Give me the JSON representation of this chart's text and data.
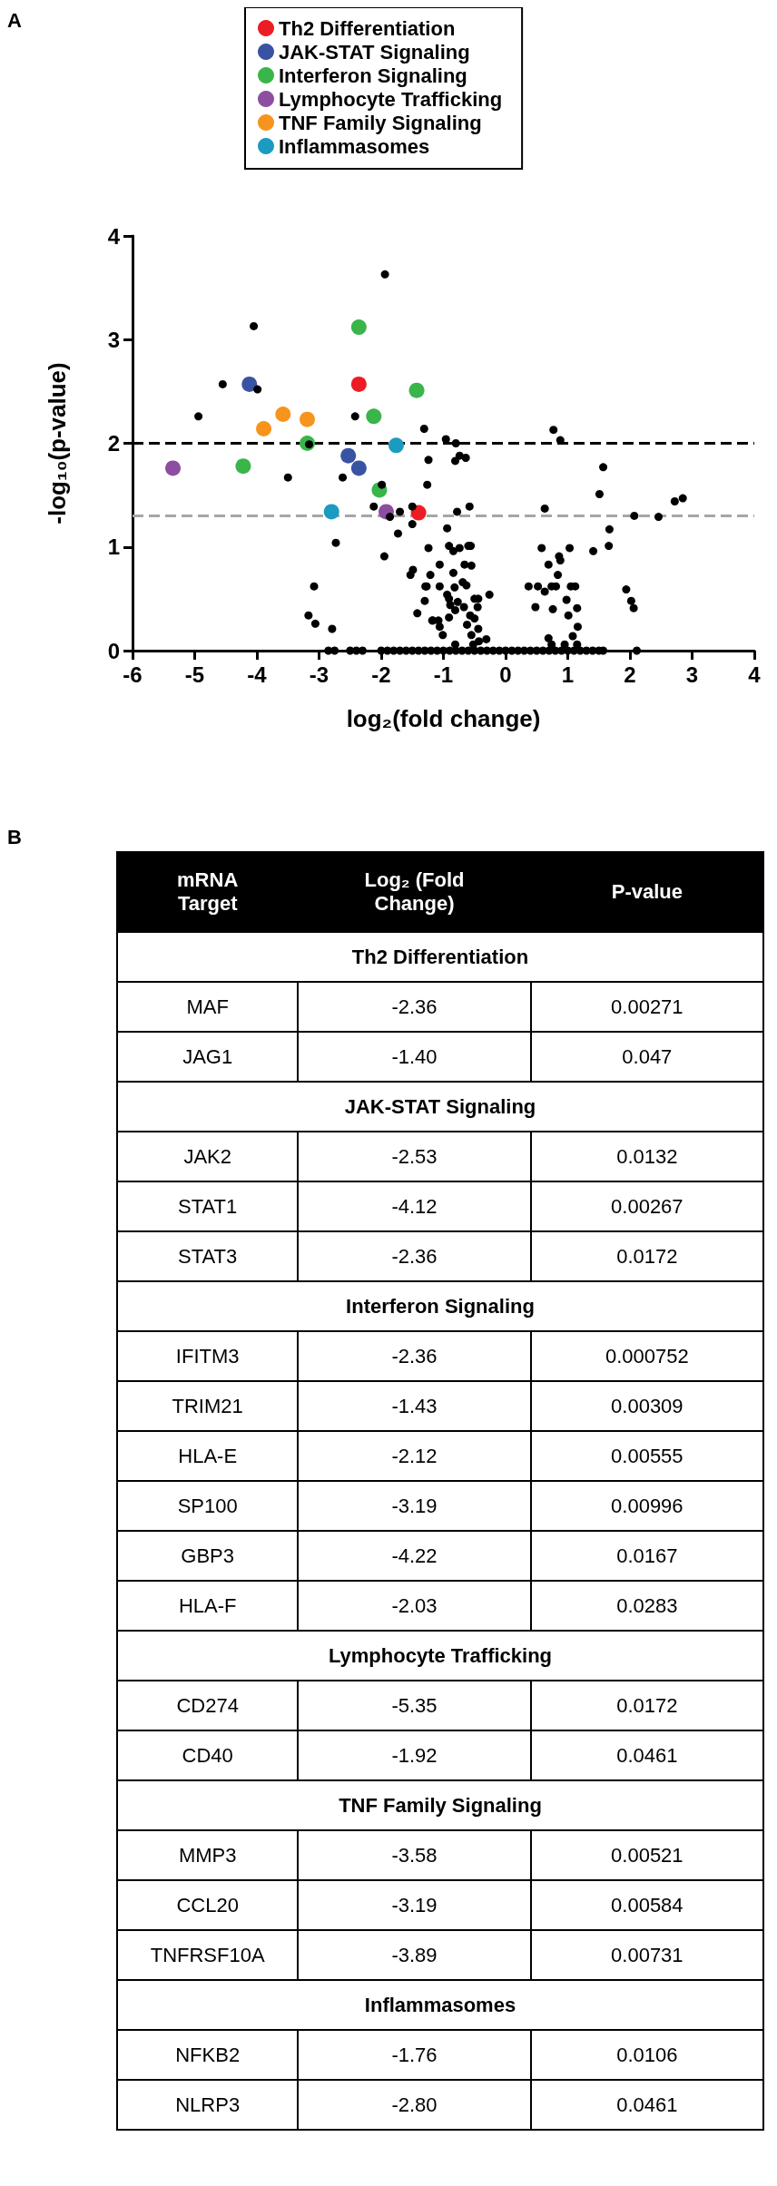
{
  "chart_data": [
    {
      "type": "scatter",
      "annotations": [
        "A"
      ],
      "xlabel": "log₂(fold change)",
      "ylabel": "-log₁₀(p-value)",
      "xlim": [
        -6,
        4
      ],
      "xticks": [
        -6,
        -5,
        -4,
        -3,
        -2,
        -1,
        0,
        1,
        2,
        3,
        4
      ],
      "ylim": [
        0,
        4
      ],
      "yticks": [
        0,
        1,
        2,
        3,
        4
      ],
      "grid": false,
      "legend": "top",
      "marker": "circle",
      "ref_lines": [
        {
          "axis": "y",
          "value": 2,
          "color": "#000000",
          "line_style": "dashed"
        },
        {
          "axis": "y",
          "value": 1.3,
          "color": "#a6a6a6",
          "line_style": "dashed"
        }
      ],
      "series": [
        {
          "name": "Th2 Differentiation",
          "color": "#ed1c24",
          "x": [
            -2.36,
            -1.4
          ],
          "values": [
            2.57,
            1.33
          ]
        },
        {
          "name": "JAK-STAT Signaling",
          "color": "#3953a4",
          "x": [
            -2.53,
            -4.12,
            -2.36
          ],
          "values": [
            1.88,
            2.57,
            1.76
          ]
        },
        {
          "name": "Interferon Signaling",
          "color": "#39b54a",
          "x": [
            -2.36,
            -1.43,
            -2.12,
            -3.19,
            -4.22,
            -2.03
          ],
          "values": [
            3.12,
            2.51,
            2.26,
            2.0,
            1.78,
            1.55
          ]
        },
        {
          "name": "Lymphocyte Trafficking",
          "color": "#8e4ea0",
          "x": [
            -5.35,
            -1.92
          ],
          "values": [
            1.76,
            1.34
          ]
        },
        {
          "name": "TNF Family Signaling",
          "color": "#f7941d",
          "x": [
            -3.58,
            -3.19,
            -3.89
          ],
          "values": [
            2.28,
            2.23,
            2.14
          ]
        },
        {
          "name": "Inflammasomes",
          "color": "#1b9bbf",
          "x": [
            -1.76,
            -2.8
          ],
          "values": [
            1.98,
            1.34
          ]
        },
        {
          "color": "#000000",
          "x": [
            -1.94,
            -4.05,
            -4.55,
            -3.99,
            -4.94,
            -2.42,
            -1.31,
            -3.16,
            -1.24,
            -3.5,
            -2.62,
            -1.99,
            -2.12,
            -1.86,
            -1.7,
            -1.5,
            -1.5,
            -1.73,
            -1.26,
            -2.73,
            -1.95,
            -1.24,
            -3.08,
            -3.17,
            -3.06,
            -2.79,
            -1.49,
            -1.53,
            -1.21,
            -1.29,
            -1.3,
            -1.42,
            -1.17,
            0.77,
            0.88,
            -0.96,
            -0.8,
            -0.74,
            -0.64,
            -0.81,
            1.57,
            1.51,
            2.72,
            2.85,
            -0.58,
            -0.78,
            0.63,
            2.07,
            2.46,
            -0.94,
            1.67,
            1.66,
            1.41,
            -0.91,
            -0.84,
            -0.74,
            -0.6,
            -0.56,
            0.58,
            1.03,
            0.86,
            0.88,
            0.69,
            -1.06,
            -0.66,
            -0.55,
            -0.84,
            0.84,
            -0.69,
            -0.63,
            -1.27,
            -1.06,
            -0.82,
            0.37,
            0.52,
            0.63,
            0.74,
            0.81,
            1.05,
            1.12,
            1.94,
            -0.26,
            -0.94,
            -0.91,
            -0.5,
            -0.44,
            0.98,
            2.02,
            2.06,
            -0.77,
            -0.89,
            -0.67,
            -0.45,
            0.48,
            0.76,
            1.15,
            -0.81,
            -0.91,
            -0.57,
            -0.5,
            1.01,
            -1.18,
            -1.08,
            -1.06,
            -0.62,
            -0.44,
            1.16,
            -1.01,
            -0.55,
            1.08,
            0.69,
            -0.31,
            -0.43,
            -0.81,
            -0.52,
            0.74,
            0.95,
            1.15,
            -2.85,
            -2.75,
            -2.5,
            -2.4,
            -2.3,
            -2.0,
            -1.9,
            -1.8,
            -1.7,
            -1.6,
            -1.5,
            -1.4,
            -1.3,
            -1.2,
            -1.1,
            -1.0,
            -0.9,
            -0.8,
            -0.7,
            -0.6,
            -0.5,
            -0.4,
            -0.3,
            -0.2,
            -0.1,
            0,
            0.1,
            0.2,
            0.3,
            0.4,
            0.5,
            0.6,
            0.7,
            0.8,
            0.9,
            1.0,
            1.1,
            1.2,
            1.3,
            1.4,
            1.5,
            1.57,
            2.11
          ],
          "values": [
            3.63,
            3.13,
            2.57,
            2.52,
            2.26,
            2.26,
            2.14,
            1.99,
            1.84,
            1.67,
            1.67,
            1.6,
            1.39,
            1.29,
            1.34,
            1.39,
            1.22,
            1.13,
            1.6,
            1.04,
            0.91,
            0.99,
            0.62,
            0.34,
            0.26,
            0.21,
            0.78,
            0.73,
            0.73,
            0.62,
            0.48,
            0.36,
            0.29,
            2.13,
            2.03,
            2.04,
            2.0,
            1.88,
            1.86,
            1.83,
            1.77,
            1.51,
            1.44,
            1.47,
            1.39,
            1.34,
            1.37,
            1.3,
            1.29,
            1.18,
            1.17,
            1.01,
            0.96,
            1.01,
            0.96,
            0.99,
            1.01,
            1.01,
            0.99,
            0.99,
            0.91,
            0.87,
            0.83,
            0.83,
            0.83,
            0.82,
            0.75,
            0.73,
            0.66,
            0.63,
            0.62,
            0.62,
            0.61,
            0.62,
            0.62,
            0.57,
            0.62,
            0.62,
            0.62,
            0.62,
            0.59,
            0.54,
            0.54,
            0.5,
            0.5,
            0.5,
            0.49,
            0.48,
            0.41,
            0.47,
            0.44,
            0.42,
            0.42,
            0.42,
            0.4,
            0.41,
            0.39,
            0.32,
            0.34,
            0.31,
            0.34,
            0.29,
            0.29,
            0.23,
            0.25,
            0.21,
            0.23,
            0.15,
            0.15,
            0.14,
            0.12,
            0.11,
            0.09,
            0.06,
            0.06,
            0.06,
            0.06,
            0.06,
            0,
            0,
            0,
            0,
            0,
            0,
            0,
            0,
            0,
            0,
            0,
            0,
            0,
            0,
            0,
            0,
            0,
            0,
            0,
            0,
            0,
            0,
            0,
            0,
            0,
            0,
            0,
            0,
            0,
            0,
            0,
            0,
            0,
            0,
            0,
            0,
            0,
            0,
            0,
            0,
            0,
            0,
            0
          ]
        }
      ]
    },
    {
      "type": "other",
      "annotations": [
        "B"
      ],
      "categories": [
        "mRNA Target",
        "Log₂ (Fold Change)",
        "P-value"
      ],
      "cell_labels": [
        [
          "Th2 Differentiation",
          null,
          null
        ],
        [
          "MAF",
          "-2.36",
          "0.00271"
        ],
        [
          "JAG1",
          "-1.40",
          "0.047"
        ],
        [
          "JAK-STAT Signaling",
          null,
          null
        ],
        [
          "JAK2",
          "-2.53",
          "0.0132"
        ],
        [
          "STAT1",
          "-4.12",
          "0.00267"
        ],
        [
          "STAT3",
          "-2.36",
          "0.0172"
        ],
        [
          "Interferon Signaling",
          null,
          null
        ],
        [
          "IFITM3",
          "-2.36",
          "0.000752"
        ],
        [
          "TRIM21",
          "-1.43",
          "0.00309"
        ],
        [
          "HLA-E",
          "-2.12",
          "0.00555"
        ],
        [
          "SP100",
          "-3.19",
          "0.00996"
        ],
        [
          "GBP3",
          "-4.22",
          "0.0167"
        ],
        [
          "HLA-F",
          "-2.03",
          "0.0283"
        ],
        [
          "Lymphocyte Trafficking",
          null,
          null
        ],
        [
          "CD274",
          "-5.35",
          "0.0172"
        ],
        [
          "CD40",
          "-1.92",
          "0.0461"
        ],
        [
          "TNF Family Signaling",
          null,
          null
        ],
        [
          "MMP3",
          "-3.58",
          "0.00521"
        ],
        [
          "CCL20",
          "-3.19",
          "0.00584"
        ],
        [
          "TNFRSF10A",
          "-3.89",
          "0.00731"
        ],
        [
          "Inflammasomes",
          null,
          null
        ],
        [
          "NFKB2",
          "-1.76",
          "0.0106"
        ],
        [
          "NLRP3",
          "-2.80",
          "0.0461"
        ]
      ]
    }
  ]
}
